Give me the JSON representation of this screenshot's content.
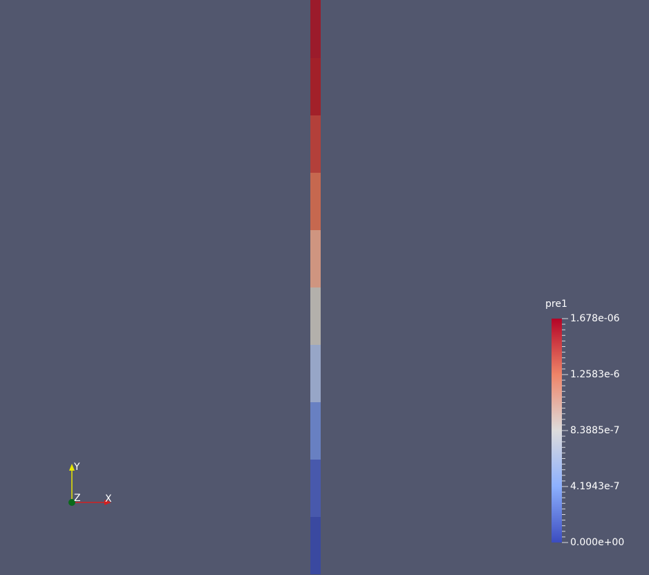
{
  "colorbar": {
    "title": "pre1",
    "labels": [
      "1.678e-06",
      "1.2583e-6",
      "8.3885e-7",
      "4.1943e-7",
      "0.000e+00"
    ]
  },
  "axes": {
    "x": "X",
    "y": "Y",
    "z": "Z"
  }
}
